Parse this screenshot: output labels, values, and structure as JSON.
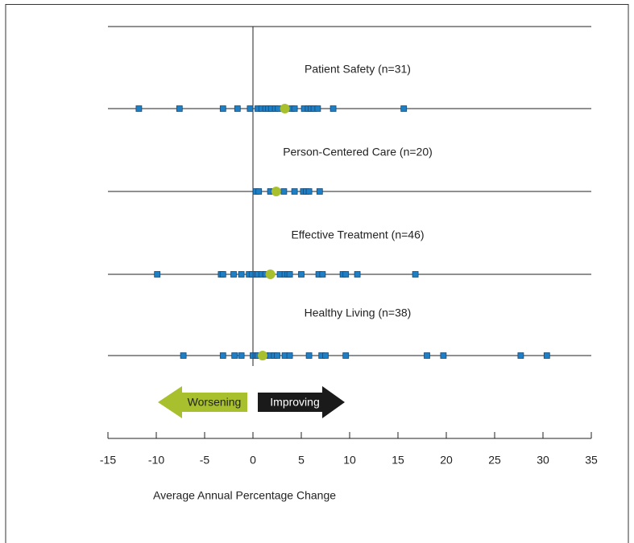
{
  "chart_data": {
    "type": "strip",
    "xlabel": "Average Annual Percentage Change",
    "xlim": [
      -15,
      35
    ],
    "xticks": [
      -15,
      -10,
      -5,
      0,
      5,
      10,
      15,
      20,
      25,
      30,
      35
    ],
    "marker_color": "#1f7fc4",
    "median_color": "#a8bf2e",
    "annotations": [
      {
        "text": "Worsening",
        "color": "#a8bf2e"
      },
      {
        "text": "Improving",
        "color": "#1a1a1a"
      }
    ],
    "series": [
      {
        "name": "Patient Safety (n=31)",
        "median": 3.3,
        "values": [
          -11.8,
          -7.6,
          -3.1,
          -1.6,
          -0.3,
          0.5,
          0.9,
          1.3,
          1.6,
          1.9,
          2.3,
          2.6,
          4.0,
          4.3,
          5.3,
          5.7,
          6.0,
          6.3,
          6.7,
          8.3,
          15.6
        ]
      },
      {
        "name": "Person-Centered Care (n=20)",
        "median": 2.4,
        "values": [
          0.3,
          0.6,
          1.8,
          2.2,
          3.2,
          4.3,
          5.2,
          5.5,
          5.8,
          6.9
        ]
      },
      {
        "name": "Effective Treatment (n=46)",
        "median": 1.8,
        "values": [
          -9.9,
          -3.3,
          -3.1,
          -2.0,
          -1.2,
          -0.4,
          -0.1,
          0.3,
          0.5,
          0.9,
          1.3,
          2.8,
          3.3,
          3.6,
          3.8,
          5.0,
          6.8,
          7.2,
          9.3,
          9.6,
          10.8,
          16.8
        ]
      },
      {
        "name": "Healthy Living (n=38)",
        "median": 1.0,
        "values": [
          -7.2,
          -3.1,
          -1.9,
          -1.2,
          0,
          0.3,
          0.5,
          1.3,
          1.8,
          2.2,
          2.5,
          3.3,
          3.8,
          5.8,
          7.1,
          7.5,
          9.6,
          18,
          19.7,
          27.7,
          30.4
        ]
      }
    ]
  }
}
